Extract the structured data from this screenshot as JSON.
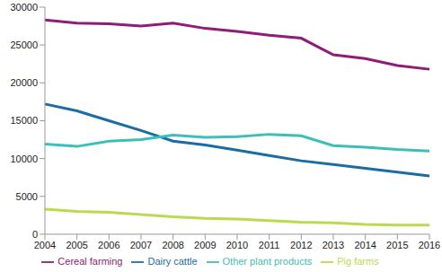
{
  "chart_data": {
    "type": "line",
    "categories": [
      "2004",
      "2005",
      "2006",
      "2007",
      "2008",
      "2009",
      "2010",
      "2011",
      "2012",
      "2013",
      "2014",
      "2015",
      "2016"
    ],
    "series": [
      {
        "name": "Dairy cattle",
        "color": "#1a6ca6",
        "values": [
          17200,
          16300,
          15000,
          13700,
          12300,
          11800,
          11100,
          10400,
          9700,
          9200,
          8700,
          8200,
          7700
        ]
      },
      {
        "name": "Pig farms",
        "color": "#b8dc4c",
        "values": [
          3300,
          3000,
          2900,
          2600,
          2300,
          2100,
          2000,
          1800,
          1600,
          1500,
          1300,
          1200,
          1200
        ]
      },
      {
        "name": "Cereal farming",
        "color": "#8e1c78",
        "values": [
          28300,
          27900,
          27800,
          27500,
          27900,
          27200,
          26800,
          26300,
          25900,
          23700,
          23200,
          22300,
          21800
        ]
      },
      {
        "name": "Other plant products",
        "color": "#3cbfb8",
        "values": [
          11900,
          11600,
          12300,
          12500,
          13100,
          12800,
          12900,
          13200,
          13000,
          11700,
          11500,
          11200,
          11000
        ]
      }
    ],
    "ylim": [
      0,
      30000
    ],
    "yticks": [
      0,
      5000,
      10000,
      15000,
      20000,
      25000,
      30000
    ],
    "grid": false,
    "legend": "bottom"
  }
}
